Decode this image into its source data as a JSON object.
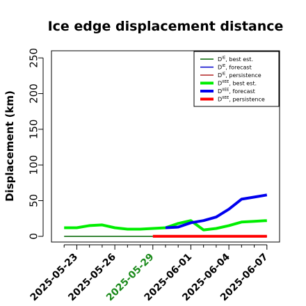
{
  "chart_data": {
    "type": "line",
    "title": "Ice edge displacement distance",
    "xlabel": "",
    "ylabel": "Displacement (km)",
    "ylim": [
      -8,
      260
    ],
    "yticks": [
      0,
      50,
      100,
      150,
      200,
      250
    ],
    "x_days": [
      "2025-05-22",
      "2025-05-23",
      "2025-05-24",
      "2025-05-25",
      "2025-05-26",
      "2025-05-27",
      "2025-05-28",
      "2025-05-29",
      "2025-05-30",
      "2025-05-31",
      "2025-06-01",
      "2025-06-02",
      "2025-06-03",
      "2025-06-04",
      "2025-06-05",
      "2025-06-06",
      "2025-06-07"
    ],
    "xlim": [
      "2025-05-21",
      "2025-06-08"
    ],
    "xtick_labels": [
      "2025-05-23",
      "2025-05-26",
      "2025-05-29",
      "2025-06-01",
      "2025-06-04",
      "2025-06-07"
    ],
    "highlight_tick": "2025-05-29",
    "highlight_color": "#1a8a1a",
    "grid": false,
    "legend_position": "top-right",
    "series": [
      {
        "name": "D^IE, best est.",
        "label_base": "D",
        "label_sup": "IE",
        "label_rest": ", best est.",
        "color": "#006400",
        "width": 1.5,
        "x": [
          "2025-05-22",
          "2025-05-23",
          "2025-05-24",
          "2025-05-25",
          "2025-05-26",
          "2025-05-27",
          "2025-05-28",
          "2025-05-29"
        ],
        "y": [
          0,
          0,
          0,
          0,
          0,
          0,
          0,
          0
        ]
      },
      {
        "name": "D^IE, forecast",
        "label_base": "D",
        "label_sup": "IE",
        "label_rest": ", forecast",
        "color": "#0000cc",
        "width": 1.5,
        "x": [
          "2025-05-29",
          "2025-05-30",
          "2025-05-31",
          "2025-06-01",
          "2025-06-02",
          "2025-06-03",
          "2025-06-04",
          "2025-06-05",
          "2025-06-06",
          "2025-06-07"
        ],
        "y": [
          0,
          0,
          0,
          0,
          0,
          0,
          0,
          0,
          0,
          0
        ]
      },
      {
        "name": "D^IE, persistence",
        "label_base": "D",
        "label_sup": "IE",
        "label_rest": ", persistence",
        "color": "#b22222",
        "width": 1.5,
        "x": [
          "2025-05-29",
          "2025-05-30",
          "2025-05-31",
          "2025-06-01",
          "2025-06-02",
          "2025-06-03",
          "2025-06-04",
          "2025-06-05",
          "2025-06-06",
          "2025-06-07"
        ],
        "y": [
          0,
          0,
          0,
          0,
          0,
          0,
          0,
          0,
          0,
          0
        ]
      },
      {
        "name": "D^IIEE, best est.",
        "label_base": "D",
        "label_sup": "IIEE",
        "label_rest": ", best est.",
        "color": "#00ee00",
        "width": 4,
        "x": [
          "2025-05-22",
          "2025-05-23",
          "2025-05-24",
          "2025-05-25",
          "2025-05-26",
          "2025-05-27",
          "2025-05-28",
          "2025-05-29",
          "2025-05-30",
          "2025-05-31",
          "2025-06-01",
          "2025-06-02",
          "2025-06-03",
          "2025-06-04",
          "2025-06-05",
          "2025-06-06",
          "2025-06-07"
        ],
        "y": [
          12,
          12,
          15,
          16,
          12,
          10,
          10,
          11,
          12,
          18,
          22,
          9,
          11,
          15,
          20,
          21,
          22
        ]
      },
      {
        "name": "D^IIEE, forecast",
        "label_base": "D",
        "label_sup": "IIEE",
        "label_rest": ", forecast",
        "color": "#0000ee",
        "width": 4,
        "x": [
          "2025-05-30",
          "2025-05-31",
          "2025-06-01",
          "2025-06-02",
          "2025-06-03",
          "2025-06-04",
          "2025-06-05",
          "2025-06-06",
          "2025-06-07"
        ],
        "y": [
          12,
          13,
          19,
          22,
          27,
          38,
          52,
          55,
          58
        ]
      },
      {
        "name": "D^IIEE, persistence",
        "label_base": "D",
        "label_sup": "IIEE",
        "label_rest": ", persistence",
        "color": "#ff0000",
        "width": 4,
        "x": [
          "2025-05-29",
          "2025-05-30",
          "2025-05-31",
          "2025-06-01",
          "2025-06-02",
          "2025-06-03",
          "2025-06-04",
          "2025-06-05",
          "2025-06-06",
          "2025-06-07"
        ],
        "y": [
          0,
          0,
          0,
          0,
          0,
          0,
          0,
          0,
          0,
          0
        ]
      }
    ]
  }
}
